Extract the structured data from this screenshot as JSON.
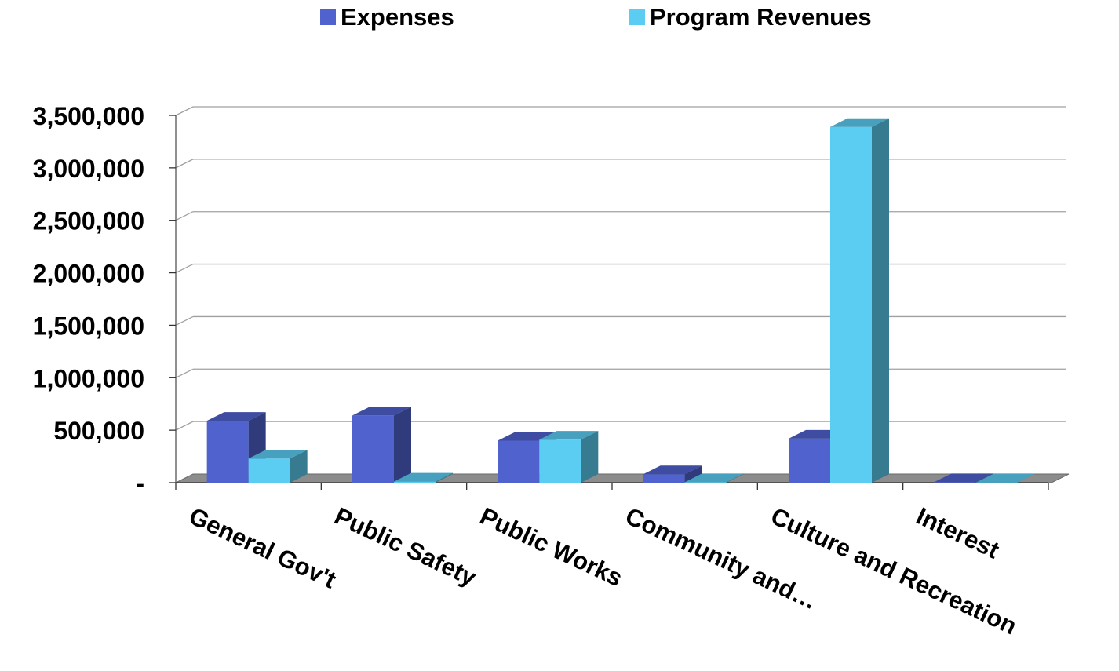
{
  "chart_data": {
    "type": "bar",
    "title": "",
    "xlabel": "",
    "ylabel": "",
    "categories": [
      "General Gov't",
      "Public Safety",
      "Public Works",
      "Community and…",
      "Culture and Recreation",
      "Interest"
    ],
    "series": [
      {
        "name": "Expenses",
        "color": "#5062CE",
        "values": [
          590000,
          640000,
          400000,
          80000,
          420000,
          5000
        ]
      },
      {
        "name": "Program Revenues",
        "color": "#5BCDF2",
        "values": [
          230000,
          10000,
          410000,
          5000,
          3390000,
          0
        ]
      }
    ],
    "ylim": [
      0,
      3500000
    ],
    "yticks": [
      0,
      500000,
      1000000,
      1500000,
      2000000,
      2500000,
      3000000,
      3500000
    ],
    "ytick_labels": [
      "-",
      "500,000",
      "1,000,000",
      "1,500,000",
      "2,000,000",
      "2,500,000",
      "3,000,000",
      "3,500,000"
    ],
    "grid": true,
    "legend_position": "top",
    "style": "3d-clustered"
  }
}
